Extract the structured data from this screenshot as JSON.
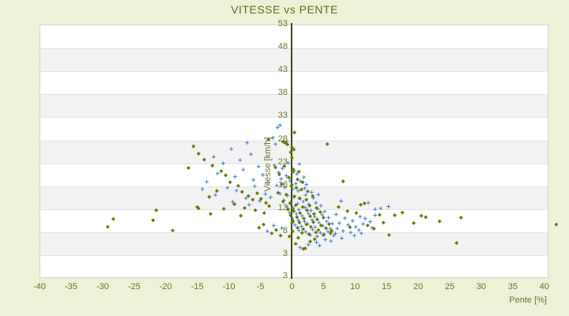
{
  "page": {
    "background": "#edf1d6"
  },
  "chart_data": {
    "type": "scatter",
    "title": "VITESSE vs PENTE",
    "xlabel": "Pente [%]",
    "ylabel": "Vitesse [km/h]",
    "xlim": [
      -40,
      40
    ],
    "ylim": [
      3,
      53
    ],
    "x_ticks": [
      -40,
      -35,
      -30,
      -25,
      -20,
      -15,
      -10,
      -5,
      0,
      5,
      10,
      15,
      20,
      25,
      30,
      35,
      40
    ],
    "y_ticks": [
      53,
      48,
      43,
      38,
      33,
      28,
      23,
      18,
      13,
      8,
      3
    ],
    "y_axis_bottom_label": "3",
    "grid": "horizontal-bands",
    "legend": "none",
    "colors": {
      "title": "#5f6e1e",
      "tick_label": "#6b7430",
      "axis_line": "#3c480a",
      "band_white": "#ffffff",
      "band_gray": "#f2f2f2",
      "gridline": "#e3e3e3",
      "plot_border": "#d4d4d4",
      "page_background": "#edf1d6"
    },
    "series": [
      {
        "name": "vitesse-pente-serie-bleue",
        "marker": "plus",
        "color": "#3c7dd2",
        "points": [
          [
            -1.9,
            31.1
          ],
          [
            -2.3,
            30.6
          ],
          [
            -3.0,
            28.4
          ],
          [
            -0.8,
            27.6
          ],
          [
            -2.6,
            27.0
          ],
          [
            -9.6,
            25.9
          ],
          [
            -7.1,
            27.3
          ],
          [
            -12.4,
            24.2
          ],
          [
            -10.9,
            22.8
          ],
          [
            -8.2,
            23.5
          ],
          [
            -6.5,
            24.8
          ],
          [
            -5.3,
            22.1
          ],
          [
            -11.8,
            20.6
          ],
          [
            -9.0,
            19.9
          ],
          [
            -7.7,
            21.4
          ],
          [
            -6.1,
            19.2
          ],
          [
            -13.5,
            18.8
          ],
          [
            -10.2,
            17.5
          ],
          [
            -8.8,
            16.9
          ],
          [
            -5.9,
            17.8
          ],
          [
            -4.6,
            20.3
          ],
          [
            -3.8,
            18.6
          ],
          [
            -12.1,
            15.9
          ],
          [
            -7.3,
            15.2
          ],
          [
            -5.1,
            14.6
          ],
          [
            -4.2,
            16.1
          ],
          [
            -3.4,
            15.4
          ],
          [
            -6.8,
            13.8
          ],
          [
            -9.4,
            14.4
          ],
          [
            -14.2,
            17.2
          ],
          [
            -2.8,
            22.4
          ],
          [
            -1.5,
            21.7
          ],
          [
            -0.6,
            22.9
          ],
          [
            0.4,
            21.2
          ],
          [
            1.2,
            22.6
          ],
          [
            -2.1,
            20.8
          ],
          [
            -0.9,
            20.1
          ],
          [
            0.8,
            20.5
          ],
          [
            1.9,
            19.8
          ],
          [
            -1.7,
            19.4
          ],
          [
            -0.3,
            19.0
          ],
          [
            0.6,
            18.4
          ],
          [
            1.4,
            18.9
          ],
          [
            2.3,
            18.2
          ],
          [
            -2.4,
            18.0
          ],
          [
            -1.1,
            17.6
          ],
          [
            0.1,
            17.2
          ],
          [
            1.0,
            16.8
          ],
          [
            2.0,
            17.4
          ],
          [
            3.1,
            16.5
          ],
          [
            -1.9,
            16.2
          ],
          [
            -0.7,
            15.8
          ],
          [
            0.3,
            15.5
          ],
          [
            1.3,
            15.1
          ],
          [
            2.2,
            15.9
          ],
          [
            3.4,
            15.3
          ],
          [
            4.2,
            16.0
          ],
          [
            -1.3,
            14.8
          ],
          [
            -0.2,
            14.3
          ],
          [
            0.9,
            14.0
          ],
          [
            1.8,
            14.5
          ],
          [
            2.7,
            13.9
          ],
          [
            3.8,
            14.2
          ],
          [
            4.6,
            13.6
          ],
          [
            -0.8,
            13.4
          ],
          [
            0.2,
            13.0
          ],
          [
            1.1,
            12.7
          ],
          [
            2.1,
            13.2
          ],
          [
            3.0,
            12.5
          ],
          [
            4.1,
            12.9
          ],
          [
            5.2,
            12.3
          ],
          [
            -0.4,
            12.1
          ],
          [
            0.7,
            11.8
          ],
          [
            1.6,
            11.4
          ],
          [
            2.6,
            11.9
          ],
          [
            3.6,
            11.2
          ],
          [
            4.8,
            11.6
          ],
          [
            5.8,
            11.0
          ],
          [
            0.1,
            10.7
          ],
          [
            1.0,
            10.4
          ],
          [
            2.0,
            10.1
          ],
          [
            3.2,
            10.5
          ],
          [
            4.3,
            9.9
          ],
          [
            5.5,
            10.2
          ],
          [
            6.4,
            9.7
          ],
          [
            0.5,
            9.4
          ],
          [
            1.5,
            9.1
          ],
          [
            2.5,
            9.6
          ],
          [
            3.7,
            8.9
          ],
          [
            4.9,
            9.2
          ],
          [
            6.1,
            8.6
          ],
          [
            1.1,
            8.2
          ],
          [
            2.2,
            7.9
          ],
          [
            3.3,
            8.4
          ],
          [
            4.5,
            7.7
          ],
          [
            5.7,
            8.0
          ],
          [
            2.9,
            7.2
          ],
          [
            4.0,
            6.9
          ],
          [
            5.1,
            7.4
          ],
          [
            6.6,
            7.1
          ],
          [
            -2.9,
            9.3
          ],
          [
            -1.6,
            8.7
          ],
          [
            -3.9,
            8.0
          ],
          [
            7.8,
            14.6
          ],
          [
            13.2,
            12.8
          ],
          [
            13.2,
            11.5
          ],
          [
            11.6,
            10.8
          ],
          [
            7.0,
            11.7
          ],
          [
            8.4,
            10.9
          ],
          [
            9.6,
            10.3
          ],
          [
            10.8,
            11.2
          ],
          [
            7.5,
            9.8
          ],
          [
            8.9,
            9.4
          ],
          [
            10.1,
            9.0
          ],
          [
            11.3,
            9.6
          ],
          [
            12.4,
            10.1
          ],
          [
            7.2,
            8.6
          ],
          [
            8.1,
            8.1
          ],
          [
            9.3,
            7.8
          ],
          [
            10.6,
            8.3
          ],
          [
            6.9,
            7.5
          ],
          [
            9.9,
            7.1
          ],
          [
            11.0,
            7.6
          ],
          [
            12.7,
            8.8
          ],
          [
            14.1,
            13.0
          ],
          [
            2.6,
            5.1
          ],
          [
            1.3,
            4.5
          ],
          [
            3.9,
            5.6
          ],
          [
            5.3,
            6.2
          ],
          [
            6.2,
            5.9
          ],
          [
            7.9,
            6.5
          ],
          [
            4.4,
            4.9
          ],
          [
            15.3,
            13.4
          ],
          [
            12.1,
            14.2
          ]
        ]
      },
      {
        "name": "vitesse-pente-serie-olive",
        "marker": "diamond",
        "color": "#6e7800",
        "points": [
          [
            0.4,
            29.5
          ],
          [
            -1.4,
            27.5
          ],
          [
            -1.0,
            27.2
          ],
          [
            -0.7,
            26.9
          ],
          [
            0.0,
            26.3
          ],
          [
            0.3,
            25.8
          ],
          [
            5.6,
            27.0
          ],
          [
            -3.7,
            28.0
          ],
          [
            -0.2,
            25.2
          ],
          [
            -15.6,
            26.5
          ],
          [
            -14.8,
            24.9
          ],
          [
            -13.9,
            23.6
          ],
          [
            -12.6,
            22.3
          ],
          [
            -11.2,
            21.1
          ],
          [
            -16.4,
            21.8
          ],
          [
            -10.5,
            20.2
          ],
          [
            -9.8,
            18.7
          ],
          [
            -8.5,
            17.9
          ],
          [
            -7.9,
            16.6
          ],
          [
            -6.9,
            15.7
          ],
          [
            -6.2,
            14.9
          ],
          [
            -5.5,
            16.3
          ],
          [
            -4.9,
            15.1
          ],
          [
            -4.1,
            14.2
          ],
          [
            -11.9,
            16.8
          ],
          [
            -13.1,
            15.5
          ],
          [
            -9.1,
            13.9
          ],
          [
            -7.5,
            13.1
          ],
          [
            -5.8,
            12.6
          ],
          [
            -4.4,
            12.0
          ],
          [
            -3.6,
            13.5
          ],
          [
            -10.8,
            12.9
          ],
          [
            -12.9,
            11.8
          ],
          [
            -8.1,
            11.4
          ],
          [
            -28.3,
            10.7
          ],
          [
            -29.2,
            9.0
          ],
          [
            -22.0,
            10.4
          ],
          [
            -21.5,
            12.6
          ],
          [
            -18.9,
            8.2
          ],
          [
            -15.0,
            13.3
          ],
          [
            -14.8,
            13.0
          ],
          [
            -2.6,
            21.9
          ],
          [
            -1.2,
            22.2
          ],
          [
            0.2,
            21.5
          ],
          [
            1.1,
            21.0
          ],
          [
            -2.0,
            20.4
          ],
          [
            -0.5,
            19.7
          ],
          [
            0.9,
            19.3
          ],
          [
            1.7,
            18.7
          ],
          [
            -1.6,
            18.3
          ],
          [
            -0.1,
            17.9
          ],
          [
            0.7,
            17.5
          ],
          [
            1.5,
            17.1
          ],
          [
            2.5,
            16.7
          ],
          [
            -2.2,
            16.4
          ],
          [
            -0.9,
            16.0
          ],
          [
            0.4,
            15.6
          ],
          [
            1.2,
            15.2
          ],
          [
            2.3,
            14.9
          ],
          [
            3.3,
            15.7
          ],
          [
            -1.4,
            14.5
          ],
          [
            -0.3,
            14.1
          ],
          [
            0.6,
            13.7
          ],
          [
            1.7,
            13.3
          ],
          [
            2.8,
            13.6
          ],
          [
            3.9,
            13.1
          ],
          [
            -0.6,
            12.8
          ],
          [
            0.3,
            12.4
          ],
          [
            1.3,
            12.0
          ],
          [
            2.4,
            12.6
          ],
          [
            3.5,
            11.8
          ],
          [
            4.5,
            12.2
          ],
          [
            -0.2,
            11.5
          ],
          [
            0.8,
            11.1
          ],
          [
            1.9,
            10.8
          ],
          [
            2.9,
            11.3
          ],
          [
            4.0,
            10.6
          ],
          [
            5.0,
            11.0
          ],
          [
            0.2,
            10.2
          ],
          [
            1.2,
            9.9
          ],
          [
            2.3,
            9.5
          ],
          [
            3.4,
            10.0
          ],
          [
            4.6,
            9.3
          ],
          [
            5.9,
            9.6
          ],
          [
            0.9,
            8.8
          ],
          [
            1.8,
            8.5
          ],
          [
            3.0,
            9.0
          ],
          [
            4.2,
            8.3
          ],
          [
            5.4,
            8.7
          ],
          [
            6.3,
            8.1
          ],
          [
            1.6,
            7.7
          ],
          [
            2.7,
            7.4
          ],
          [
            3.8,
            7.8
          ],
          [
            5.0,
            7.2
          ],
          [
            6.1,
            7.6
          ],
          [
            0.0,
            24.0
          ],
          [
            0.1,
            20.9
          ],
          [
            0.0,
            18.1
          ],
          [
            0.1,
            13.0
          ],
          [
            0.0,
            9.8
          ],
          [
            0.1,
            8.0
          ],
          [
            -2.5,
            8.3
          ],
          [
            -3.2,
            7.6
          ],
          [
            -1.8,
            7.1
          ],
          [
            -4.5,
            9.5
          ],
          [
            -5.2,
            8.8
          ],
          [
            8.1,
            18.9
          ],
          [
            11.5,
            14.1
          ],
          [
            13.9,
            11.6
          ],
          [
            16.3,
            11.5
          ],
          [
            19.3,
            9.8
          ],
          [
            21.2,
            11.1
          ],
          [
            15.4,
            7.2
          ],
          [
            9.2,
            8.9
          ],
          [
            7.4,
            13.3
          ],
          [
            8.8,
            12.4
          ],
          [
            10.2,
            12.0
          ],
          [
            12.0,
            9.3
          ],
          [
            13.0,
            8.6
          ],
          [
            14.5,
            9.9
          ],
          [
            10.9,
            13.8
          ],
          [
            17.5,
            12.1
          ],
          [
            20.5,
            11.4
          ],
          [
            26.8,
            11.0
          ],
          [
            26.1,
            5.5
          ],
          [
            41.9,
            9.5
          ],
          [
            23.4,
            10.2
          ],
          [
            2.1,
            4.3
          ],
          [
            0.6,
            5.3
          ],
          [
            1.0,
            6.6
          ],
          [
            -0.4,
            6.9
          ],
          [
            2.9,
            5.8
          ],
          [
            1.8,
            4.2
          ],
          [
            3.6,
            6.3
          ]
        ]
      }
    ]
  }
}
